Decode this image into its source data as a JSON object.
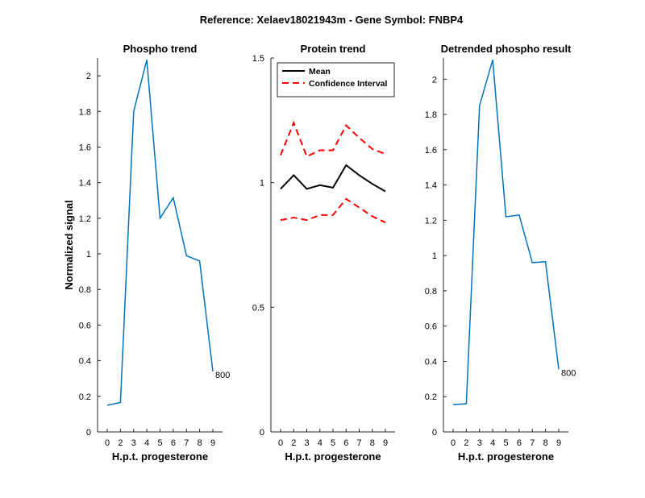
{
  "figure_title": "Reference:  Xelaev18021943m - Gene Symbol:  FNBP4",
  "chart_data": [
    {
      "type": "line",
      "title": "Phospho trend",
      "xlabel": "H.p.t. progesterone",
      "ylabel": "Normalized signal",
      "x": [
        0,
        2,
        3,
        4,
        5,
        6,
        7,
        8,
        9
      ],
      "xticks": [
        "0",
        "2",
        "3",
        "4",
        "5",
        "6",
        "7",
        "8",
        "9"
      ],
      "ylim": [
        0,
        2.1
      ],
      "yticks": [
        "0",
        "0.2",
        "0.4",
        "0.6",
        "0.8",
        "1",
        "1.2",
        "1.4",
        "1.6",
        "1.8",
        "2"
      ],
      "series": [
        {
          "color": "#0072BD",
          "values": [
            0.15,
            0.165,
            1.8,
            2.09,
            1.2,
            1.315,
            0.99,
            0.96,
            0.34
          ]
        }
      ],
      "annotation": "800"
    },
    {
      "type": "line",
      "title": "Protein trend",
      "xlabel": "H.p.t. progesterone",
      "ylabel": "",
      "x": [
        0,
        2,
        3,
        4,
        5,
        6,
        7,
        8,
        9
      ],
      "xticks": [
        "0",
        "2",
        "3",
        "4",
        "5",
        "6",
        "7",
        "8",
        "9"
      ],
      "ylim": [
        0,
        1.5
      ],
      "yticks": [
        "0",
        "0.5",
        "1",
        "1.5"
      ],
      "legend_position": "top-left",
      "series": [
        {
          "name": "Mean",
          "color": "#000000",
          "style": "solid",
          "values": [
            0.975,
            1.03,
            0.975,
            0.99,
            0.98,
            1.07,
            1.03,
            0.995,
            0.965
          ]
        },
        {
          "name": "Confidence Interval",
          "color": "#FF0000",
          "style": "dashed",
          "values": [
            1.11,
            1.24,
            1.105,
            1.13,
            1.13,
            1.23,
            1.18,
            1.135,
            1.115
          ]
        },
        {
          "color": "#FF0000",
          "style": "dashed",
          "values": [
            0.85,
            0.86,
            0.85,
            0.87,
            0.87,
            0.935,
            0.9,
            0.865,
            0.84
          ]
        }
      ]
    },
    {
      "type": "line",
      "title": "Detrended phospho result",
      "xlabel": "H.p.t. progesterone",
      "ylabel": "",
      "x": [
        0,
        2,
        3,
        4,
        5,
        6,
        7,
        8,
        9
      ],
      "xticks": [
        "0",
        "2",
        "3",
        "4",
        "5",
        "6",
        "7",
        "8",
        "9"
      ],
      "ylim": [
        0,
        2.12
      ],
      "yticks": [
        "0",
        "0.2",
        "0.4",
        "0.6",
        "0.8",
        "1",
        "1.2",
        "1.4",
        "1.6",
        "1.8",
        "2"
      ],
      "series": [
        {
          "color": "#0072BD",
          "values": [
            0.155,
            0.16,
            1.85,
            2.11,
            1.22,
            1.23,
            0.96,
            0.965,
            0.355
          ]
        }
      ],
      "annotation": "800"
    }
  ]
}
